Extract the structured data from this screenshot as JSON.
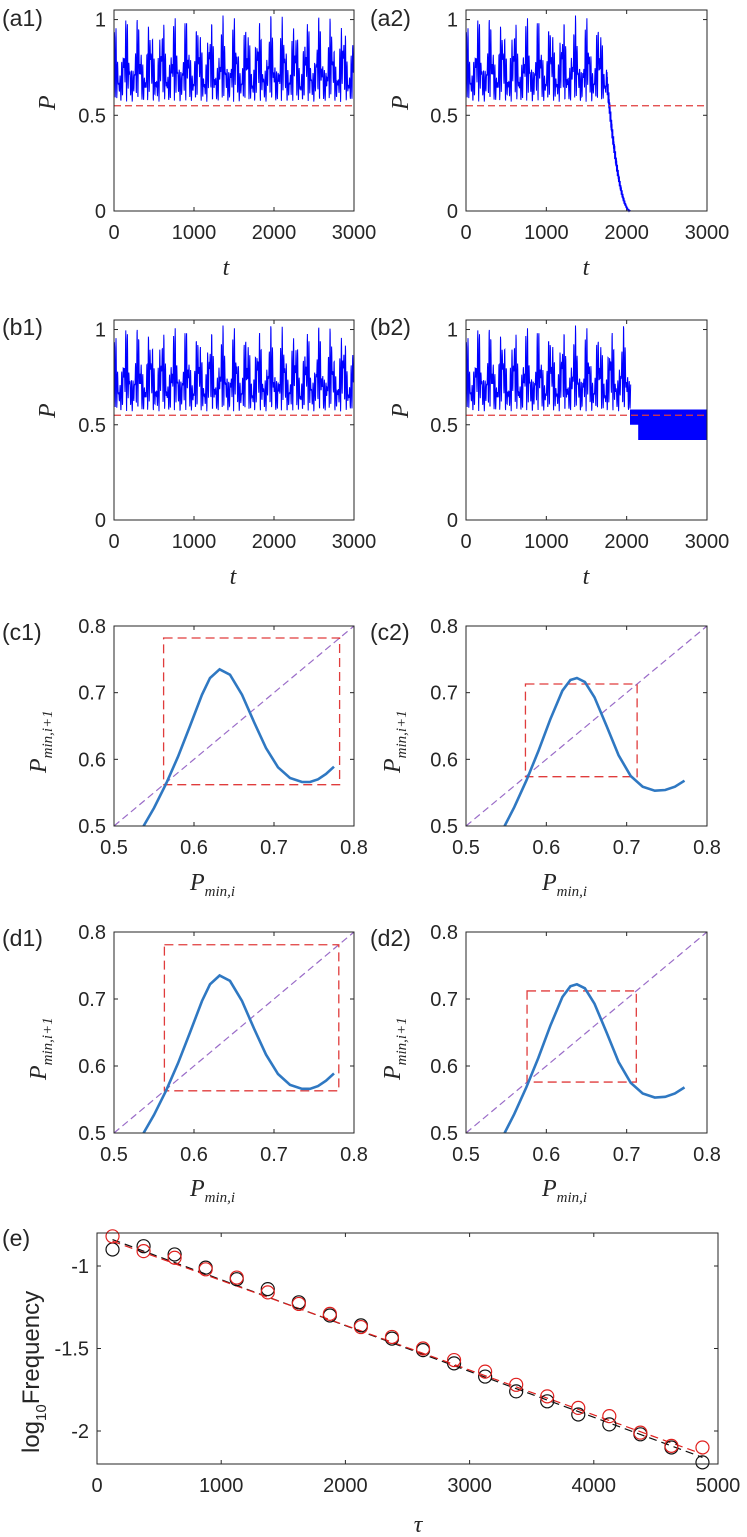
{
  "panels": {
    "a1": {
      "label": "(a1)",
      "ylabel": "P",
      "xlabel": "t"
    },
    "a2": {
      "label": "(a2)",
      "ylabel": "P",
      "xlabel": "t"
    },
    "b1": {
      "label": "(b1)",
      "ylabel": "P",
      "xlabel": "t"
    },
    "b2": {
      "label": "(b2)",
      "ylabel": "P",
      "xlabel": "t"
    },
    "c1": {
      "label": "(c1)",
      "ylabel_main": "P",
      "ylabel_sub": "min,i+1",
      "xlabel_main": "P",
      "xlabel_sub": "min,i"
    },
    "c2": {
      "label": "(c2)",
      "ylabel_main": "P",
      "ylabel_sub": "min,i+1",
      "xlabel_main": "P",
      "xlabel_sub": "min,i"
    },
    "d1": {
      "label": "(d1)",
      "ylabel_main": "P",
      "ylabel_sub": "min,i+1",
      "xlabel_main": "P",
      "xlabel_sub": "min,i"
    },
    "d2": {
      "label": "(d2)",
      "ylabel_main": "P",
      "ylabel_sub": "min,i+1",
      "xlabel_main": "P",
      "xlabel_sub": "min,i"
    },
    "e": {
      "label": "(e)",
      "ylabel_main": "log",
      "ylabel_sub": "10",
      "ylabel_rest": "Frequency",
      "xlabel": "τ"
    }
  },
  "colors": {
    "time_series": "#0000ff",
    "threshold": "#e03c3c",
    "map_curve": "#2f78c2",
    "diagonal": "#9a6cc8",
    "box": "#e03c3c",
    "black_markers": "#111111",
    "red_markers": "#e0201e",
    "axes": "#262626"
  },
  "chart_data": [
    {
      "id": "a1",
      "type": "line",
      "xlim": [
        0,
        3000
      ],
      "ylim": [
        0,
        1.05
      ],
      "xticks": [
        0,
        1000,
        2000,
        3000
      ],
      "yticks": [
        0,
        0.5,
        1
      ],
      "xtick_labels": [
        "0",
        "1000",
        "2000",
        "3000"
      ],
      "ytick_labels": [
        "0",
        "0.5",
        "1"
      ],
      "series": [
        {
          "style": "oscillating",
          "lower": 0.57,
          "upper": 1.03,
          "mid": 0.77,
          "t_start": 0,
          "t_end": 3000
        }
      ],
      "threshold": 0.55
    },
    {
      "id": "a2",
      "type": "line",
      "xlim": [
        0,
        3000
      ],
      "ylim": [
        0,
        1.05
      ],
      "xticks": [
        0,
        1000,
        2000,
        3000
      ],
      "yticks": [
        0,
        0.5,
        1
      ],
      "xtick_labels": [
        "0",
        "1000",
        "2000",
        "3000"
      ],
      "ytick_labels": [
        "0",
        "0.5",
        "1"
      ],
      "series": [
        {
          "style": "oscillating",
          "lower": 0.57,
          "upper": 1.03,
          "mid": 0.77,
          "t_start": 0,
          "t_end": 1750,
          "decay_start": 1750,
          "decay_end": 2050,
          "final": 0
        }
      ],
      "threshold": 0.55
    },
    {
      "id": "b1",
      "type": "line",
      "xlim": [
        0,
        3000
      ],
      "ylim": [
        0,
        1.05
      ],
      "xticks": [
        0,
        1000,
        2000,
        3000
      ],
      "yticks": [
        0,
        0.5,
        1
      ],
      "xtick_labels": [
        "0",
        "1000",
        "2000",
        "3000"
      ],
      "ytick_labels": [
        "0",
        "0.5",
        "1"
      ],
      "series": [
        {
          "style": "oscillating",
          "lower": 0.57,
          "upper": 1.03,
          "mid": 0.77,
          "t_start": 0,
          "t_end": 3000
        }
      ],
      "threshold": 0.55
    },
    {
      "id": "b2",
      "type": "line",
      "xlim": [
        0,
        3000
      ],
      "ylim": [
        0,
        1.05
      ],
      "xticks": [
        0,
        1000,
        2000,
        3000
      ],
      "yticks": [
        0,
        0.5,
        1
      ],
      "xtick_labels": [
        "0",
        "1000",
        "2000",
        "3000"
      ],
      "ytick_labels": [
        "0",
        "0.5",
        "1"
      ],
      "series": [
        {
          "style": "oscillating",
          "lower": 0.57,
          "upper": 1.03,
          "mid": 0.77,
          "t_start": 0,
          "t_end": 2050,
          "band_start": 2150,
          "band_lower": 0.42,
          "band_upper": 0.58
        }
      ],
      "threshold": 0.55
    },
    {
      "id": "c1",
      "type": "line",
      "xlim": [
        0.5,
        0.8
      ],
      "ylim": [
        0.5,
        0.8
      ],
      "xticks": [
        0.5,
        0.6,
        0.7,
        0.8
      ],
      "yticks": [
        0.5,
        0.6,
        0.7,
        0.8
      ],
      "xtick_labels": [
        "0.5",
        "0.6",
        "0.7",
        "0.8"
      ],
      "ytick_labels": [
        "0.5",
        "0.6",
        "0.7",
        "0.8"
      ],
      "curve": {
        "x": [
          0.537,
          0.55,
          0.565,
          0.58,
          0.595,
          0.61,
          0.62,
          0.632,
          0.645,
          0.66,
          0.675,
          0.69,
          0.705,
          0.72,
          0.735,
          0.745,
          0.755,
          0.765,
          0.775
        ],
        "y": [
          0.5,
          0.527,
          0.563,
          0.604,
          0.65,
          0.697,
          0.722,
          0.735,
          0.727,
          0.697,
          0.656,
          0.617,
          0.588,
          0.572,
          0.566,
          0.566,
          0.57,
          0.578,
          0.589
        ]
      },
      "box": [
        0.562,
        0.782,
        0.562,
        0.782
      ]
    },
    {
      "id": "c2",
      "type": "line",
      "xlim": [
        0.5,
        0.8
      ],
      "ylim": [
        0.5,
        0.8
      ],
      "xticks": [
        0.5,
        0.6,
        0.7,
        0.8
      ],
      "yticks": [
        0.5,
        0.6,
        0.7,
        0.8
      ],
      "xtick_labels": [
        "0.5",
        "0.6",
        "0.7",
        "0.8"
      ],
      "ytick_labels": [
        "0.5",
        "0.6",
        "0.7",
        "0.8"
      ],
      "curve": {
        "x": [
          0.548,
          0.56,
          0.575,
          0.59,
          0.605,
          0.62,
          0.63,
          0.638,
          0.648,
          0.66,
          0.675,
          0.69,
          0.705,
          0.72,
          0.735,
          0.748,
          0.76,
          0.772
        ],
        "y": [
          0.5,
          0.528,
          0.568,
          0.612,
          0.66,
          0.703,
          0.719,
          0.722,
          0.716,
          0.693,
          0.65,
          0.606,
          0.575,
          0.559,
          0.553,
          0.554,
          0.559,
          0.568
        ]
      },
      "box": [
        0.574,
        0.713,
        0.574,
        0.713
      ]
    },
    {
      "id": "d1",
      "type": "line",
      "xlim": [
        0.5,
        0.8
      ],
      "ylim": [
        0.5,
        0.8
      ],
      "xticks": [
        0.5,
        0.6,
        0.7,
        0.8
      ],
      "yticks": [
        0.5,
        0.6,
        0.7,
        0.8
      ],
      "xtick_labels": [
        "0.5",
        "0.6",
        "0.7",
        "0.8"
      ],
      "ytick_labels": [
        "0.5",
        "0.6",
        "0.7",
        "0.8"
      ],
      "curve": {
        "x": [
          0.537,
          0.55,
          0.565,
          0.58,
          0.595,
          0.61,
          0.62,
          0.632,
          0.645,
          0.66,
          0.675,
          0.69,
          0.705,
          0.72,
          0.735,
          0.745,
          0.755,
          0.765,
          0.775
        ],
        "y": [
          0.5,
          0.527,
          0.563,
          0.604,
          0.65,
          0.697,
          0.722,
          0.735,
          0.727,
          0.697,
          0.656,
          0.617,
          0.588,
          0.572,
          0.566,
          0.566,
          0.57,
          0.578,
          0.589
        ]
      },
      "box": [
        0.563,
        0.781,
        0.563,
        0.781
      ]
    },
    {
      "id": "d2",
      "type": "line",
      "xlim": [
        0.5,
        0.8
      ],
      "ylim": [
        0.5,
        0.8
      ],
      "xticks": [
        0.5,
        0.6,
        0.7,
        0.8
      ],
      "yticks": [
        0.5,
        0.6,
        0.7,
        0.8
      ],
      "xtick_labels": [
        "0.5",
        "0.6",
        "0.7",
        "0.8"
      ],
      "ytick_labels": [
        "0.5",
        "0.6",
        "0.7",
        "0.8"
      ],
      "curve": {
        "x": [
          0.548,
          0.56,
          0.575,
          0.59,
          0.605,
          0.62,
          0.63,
          0.638,
          0.648,
          0.66,
          0.675,
          0.69,
          0.705,
          0.72,
          0.735,
          0.748,
          0.76,
          0.772
        ],
        "y": [
          0.5,
          0.528,
          0.568,
          0.612,
          0.66,
          0.703,
          0.719,
          0.722,
          0.716,
          0.693,
          0.65,
          0.606,
          0.575,
          0.559,
          0.553,
          0.554,
          0.559,
          0.568
        ]
      },
      "box": [
        0.576,
        0.712,
        0.576,
        0.712
      ]
    },
    {
      "id": "e",
      "type": "scatter",
      "xlim": [
        0,
        5000
      ],
      "ylim": [
        -2.2,
        -0.8
      ],
      "xticks": [
        0,
        1000,
        2000,
        3000,
        4000,
        5000
      ],
      "yticks": [
        -2,
        -1.5,
        -1
      ],
      "xtick_labels": [
        "0",
        "1000",
        "2000",
        "3000",
        "4000",
        "5000"
      ],
      "ytick_labels": [
        "-2",
        "-1.5",
        "-1"
      ],
      "series": [
        {
          "color": "black",
          "x": [
            125,
            375,
            625,
            875,
            1125,
            1375,
            1625,
            1875,
            2125,
            2375,
            2625,
            2875,
            3125,
            3375,
            3625,
            3875,
            4125,
            4375,
            4625,
            4875
          ],
          "y": [
            -0.9,
            -0.88,
            -0.93,
            -1.01,
            -1.08,
            -1.14,
            -1.22,
            -1.3,
            -1.36,
            -1.44,
            -1.51,
            -1.59,
            -1.67,
            -1.76,
            -1.82,
            -1.9,
            -1.96,
            -2.02,
            -2.1,
            -2.19
          ]
        },
        {
          "color": "red",
          "x": [
            125,
            375,
            625,
            875,
            1125,
            1375,
            1625,
            1875,
            2125,
            2375,
            2625,
            2875,
            3125,
            3375,
            3625,
            3875,
            4125,
            4375,
            4625,
            4875
          ],
          "y": [
            -0.82,
            -0.91,
            -0.95,
            -1.02,
            -1.07,
            -1.16,
            -1.23,
            -1.29,
            -1.37,
            -1.43,
            -1.5,
            -1.57,
            -1.64,
            -1.72,
            -1.79,
            -1.86,
            -1.91,
            -2.01,
            -2.09,
            -2.1
          ]
        }
      ],
      "fits": [
        {
          "color": "black",
          "x": [
            125,
            4875
          ],
          "y": [
            -0.84,
            -2.16
          ]
        },
        {
          "color": "red",
          "x": [
            125,
            4875
          ],
          "y": [
            -0.85,
            -2.14
          ]
        }
      ]
    }
  ]
}
